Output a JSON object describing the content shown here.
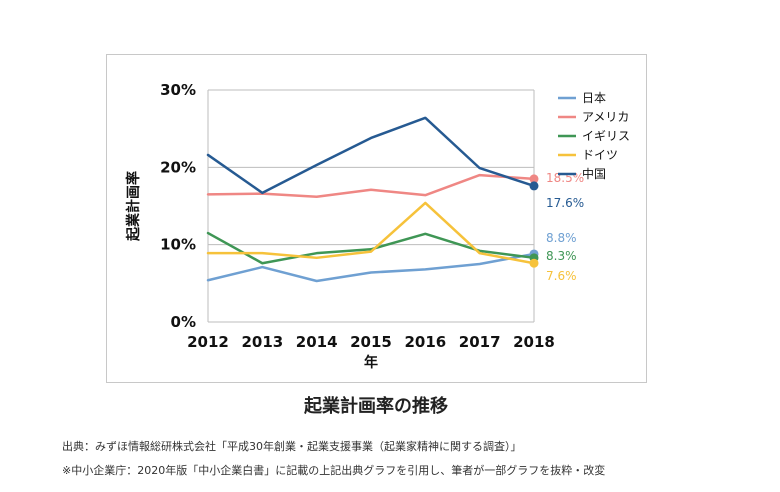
{
  "chart_data": {
    "type": "line",
    "title": "起業計画率の推移",
    "xlabel": "年",
    "ylabel": "起業計画率",
    "categories": [
      "2012",
      "2013",
      "2014",
      "2015",
      "2016",
      "2017",
      "2018"
    ],
    "ylim": [
      0,
      30
    ],
    "yticks": [
      "0%",
      "10%",
      "20%",
      "30%"
    ],
    "grid": "horizontal",
    "legend_position": "right",
    "series": [
      {
        "name": "日本",
        "color": "#6fa0d2",
        "values": [
          5.4,
          7.1,
          5.3,
          6.4,
          6.8,
          7.5,
          8.8
        ],
        "end_label": "8.8%"
      },
      {
        "name": "アメリカ",
        "color": "#ef8784",
        "values": [
          16.5,
          16.6,
          16.2,
          17.1,
          16.4,
          19.0,
          18.5
        ],
        "end_label": "18.5%"
      },
      {
        "name": "イギリス",
        "color": "#3f9655",
        "values": [
          11.5,
          7.6,
          8.9,
          9.4,
          11.4,
          9.2,
          8.3
        ],
        "end_label": "8.3%"
      },
      {
        "name": "ドイツ",
        "color": "#f6c23b",
        "values": [
          8.9,
          8.9,
          8.3,
          9.1,
          15.4,
          8.9,
          7.6
        ],
        "end_label": "7.6%"
      },
      {
        "name": "中国",
        "color": "#265a92",
        "values": [
          21.6,
          16.7,
          20.3,
          23.8,
          26.4,
          19.9,
          17.6
        ],
        "end_label": "17.6%"
      }
    ]
  },
  "notes": {
    "source": "出典：みずほ情報総研株式会社「平成30年創業・起業支援事業（起業家精神に関する調査）」",
    "disclaimer": "※中小企業庁：2020年版「中小企業白書」に記載の上記出典グラフを引用し、筆者が一部グラフを抜粋・改変"
  }
}
